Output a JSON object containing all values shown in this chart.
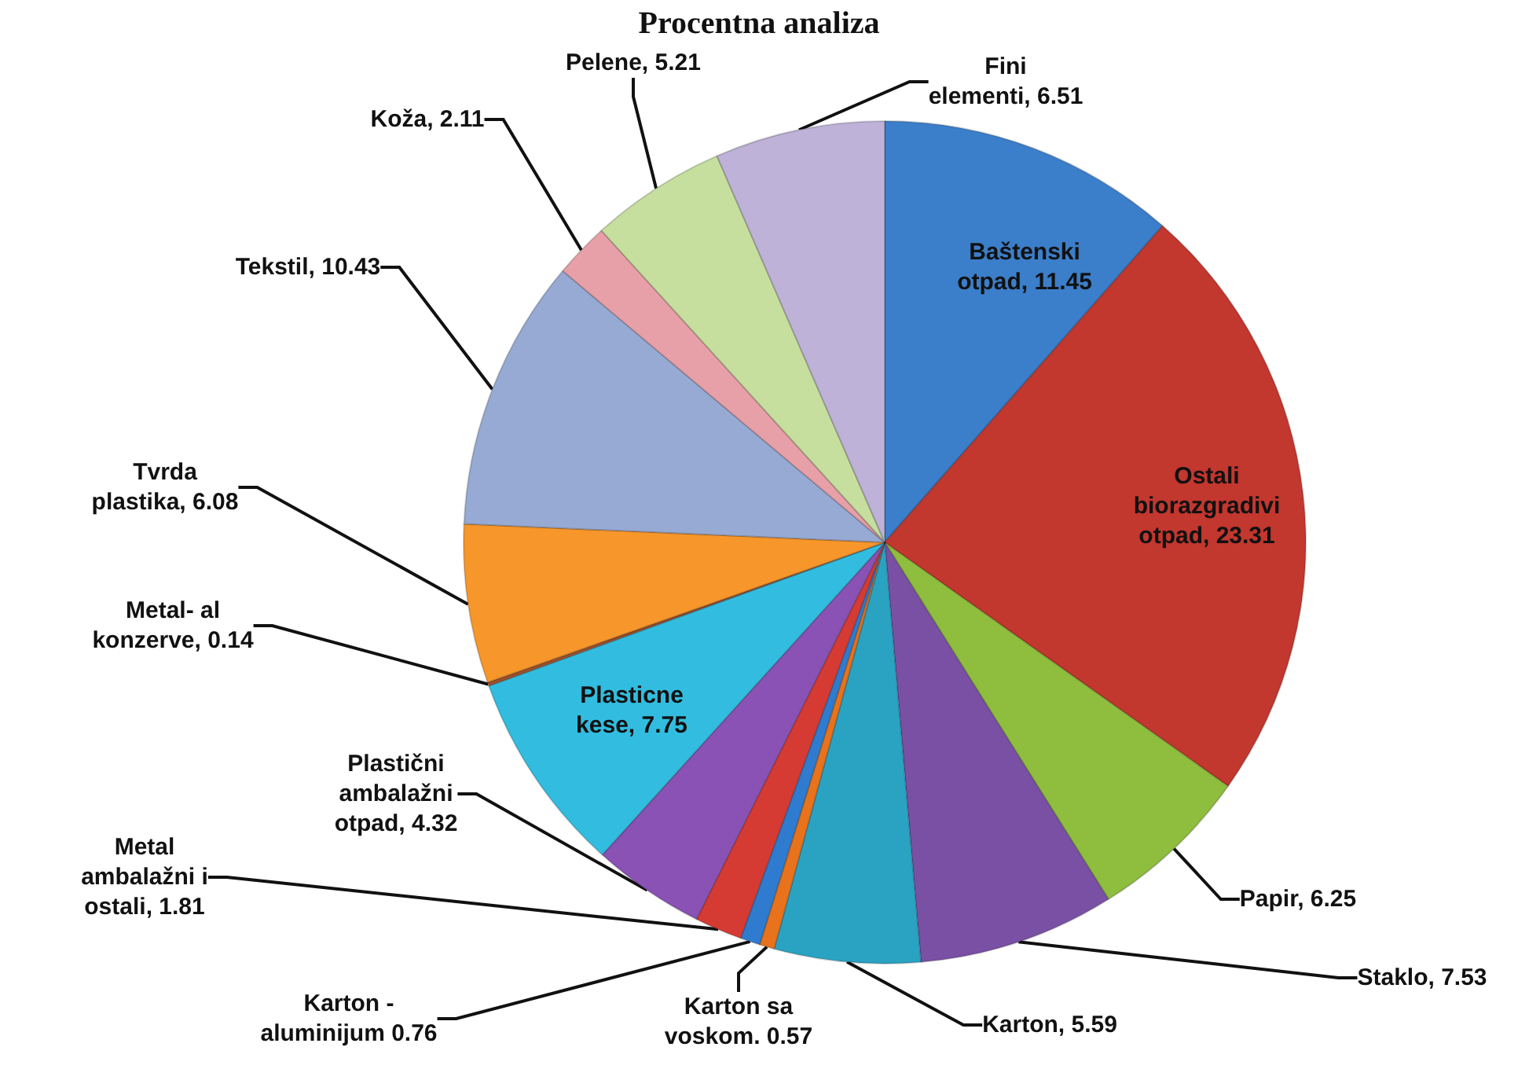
{
  "chart_data": {
    "type": "pie",
    "title": "Procentna analiza",
    "categories": [
      null,
      null,
      null,
      null,
      null,
      null,
      null,
      null,
      null,
      null,
      null,
      null,
      null,
      null,
      null,
      null
    ],
    "values": [
      11.45,
      23.31,
      6.25,
      7.53,
      5.59,
      0.57,
      0.76,
      1.81,
      4.32,
      7.75,
      0.14,
      6.08,
      10.43,
      2.11,
      5.21,
      6.51
    ],
    "value_labels": [
      "Baštenski otpad, 11.45",
      "Ostali biorazgradivi otpad, 23.31",
      "Papir, 6.25",
      "Staklo, 7.53",
      "Karton, 5.59",
      "Karton sa voskom. 0.57",
      "Karton - aluminijum 0.76",
      "Metal ambalažni i ostali, 1.81",
      "Plastični ambalažni otpad, 4.32",
      "Plasticne kese, 7.75",
      "Metal- al konzerve, 0.14",
      "Tvrda plastika, 6.08",
      "Tekstil, 10.43",
      "Koža, 2.11",
      "Pelene, 5.21",
      "Fini elementi, 6.51"
    ],
    "colors": [
      "#3b7ec9",
      "#c2372e",
      "#8fbd3e",
      "#7a50a5",
      "#2aa3c2",
      "#e8731c",
      "#2f7bcf",
      "#d63b33",
      "#8a52b5",
      "#32bde0",
      "#a0522d",
      "#f7962a",
      "#97aad3",
      "#e8a0a8",
      "#c6df9f",
      "#bfb2d8"
    ]
  }
}
